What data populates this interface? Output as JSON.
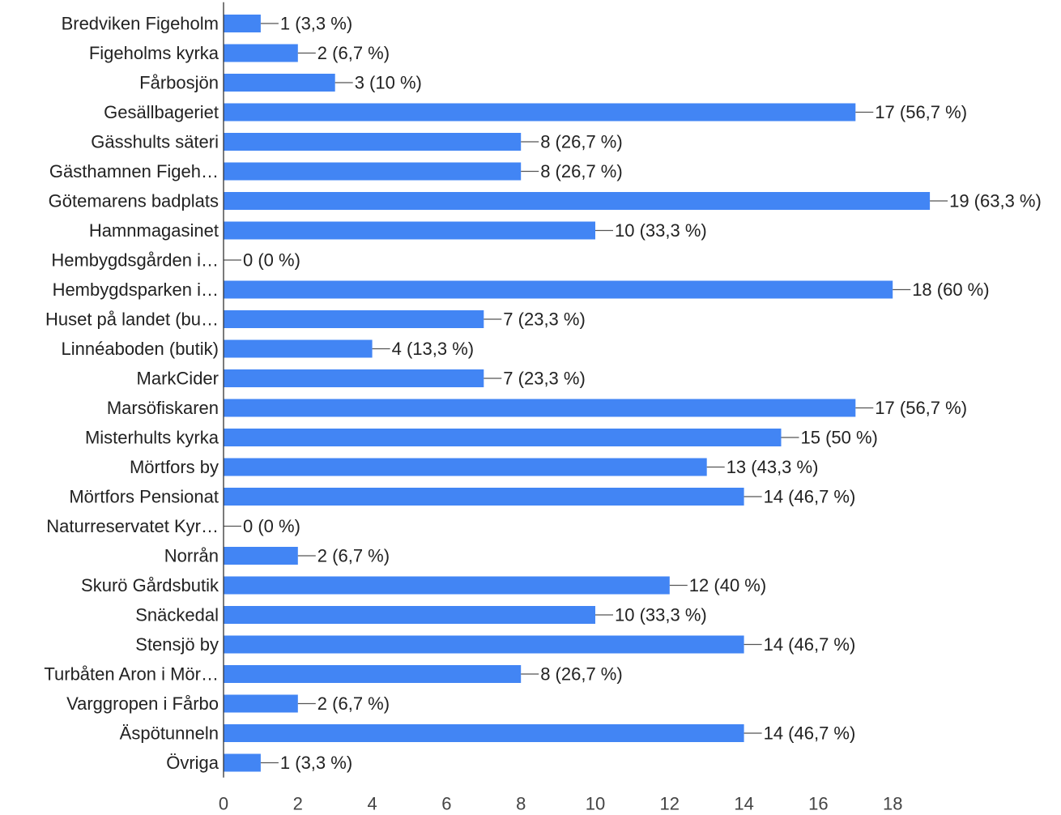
{
  "chart_data": {
    "type": "bar",
    "orientation": "horizontal",
    "categories": [
      "Bredviken Figeholm",
      "Figeholms kyrka",
      "Fårbosjön",
      "Gesällbageriet",
      "Gässhults säteri",
      "Gästhamnen Figeh…",
      "Götemarens badplats",
      "Hamnmagasinet",
      "Hembygdsgården i…",
      "Hembygdsparken i…",
      "Huset på landet (bu…",
      "Linnéaboden (butik)",
      "MarkCider",
      "Marsöfiskaren",
      "Misterhults kyrka",
      "Mörtfors by",
      "Mörtfors Pensionat",
      "Naturreservatet Kyr…",
      "Norrån",
      "Skurö Gårdsbutik",
      "Snäckedal",
      "Stensjö by",
      "Turbåten Aron i Mör…",
      "Varggropen i Fårbo",
      "Äspötunneln",
      "Övriga"
    ],
    "values": [
      1,
      2,
      3,
      17,
      8,
      8,
      19,
      10,
      0,
      18,
      7,
      4,
      7,
      17,
      15,
      13,
      14,
      0,
      2,
      12,
      10,
      14,
      8,
      2,
      14,
      1
    ],
    "data_labels": [
      "1 (3,3 %)",
      "2 (6,7 %)",
      "3 (10 %)",
      "17 (56,7 %)",
      "8 (26,7 %)",
      "8 (26,7 %)",
      "19 (63,3 %)",
      "10 (33,3 %)",
      "0 (0 %)",
      "18 (60 %)",
      "7 (23,3 %)",
      "4 (13,3 %)",
      "7 (23,3 %)",
      "17 (56,7 %)",
      "15 (50 %)",
      "13 (43,3 %)",
      "14 (46,7 %)",
      "0 (0 %)",
      "2 (6,7 %)",
      "12 (40 %)",
      "10 (33,3 %)",
      "14 (46,7 %)",
      "8 (26,7 %)",
      "2 (6,7 %)",
      "14 (46,7 %)",
      "1 (3,3 %)"
    ],
    "x_ticks": [
      0,
      2,
      4,
      6,
      8,
      10,
      12,
      14,
      16,
      18
    ],
    "xlim": [
      0,
      19
    ],
    "title": "",
    "xlabel": "",
    "ylabel": "",
    "grid": false,
    "legend": "none",
    "colors": {
      "bar": "#4285f4",
      "axis": "#333333",
      "leader": "#555555",
      "text": "#222222",
      "tick": "#444444"
    }
  }
}
